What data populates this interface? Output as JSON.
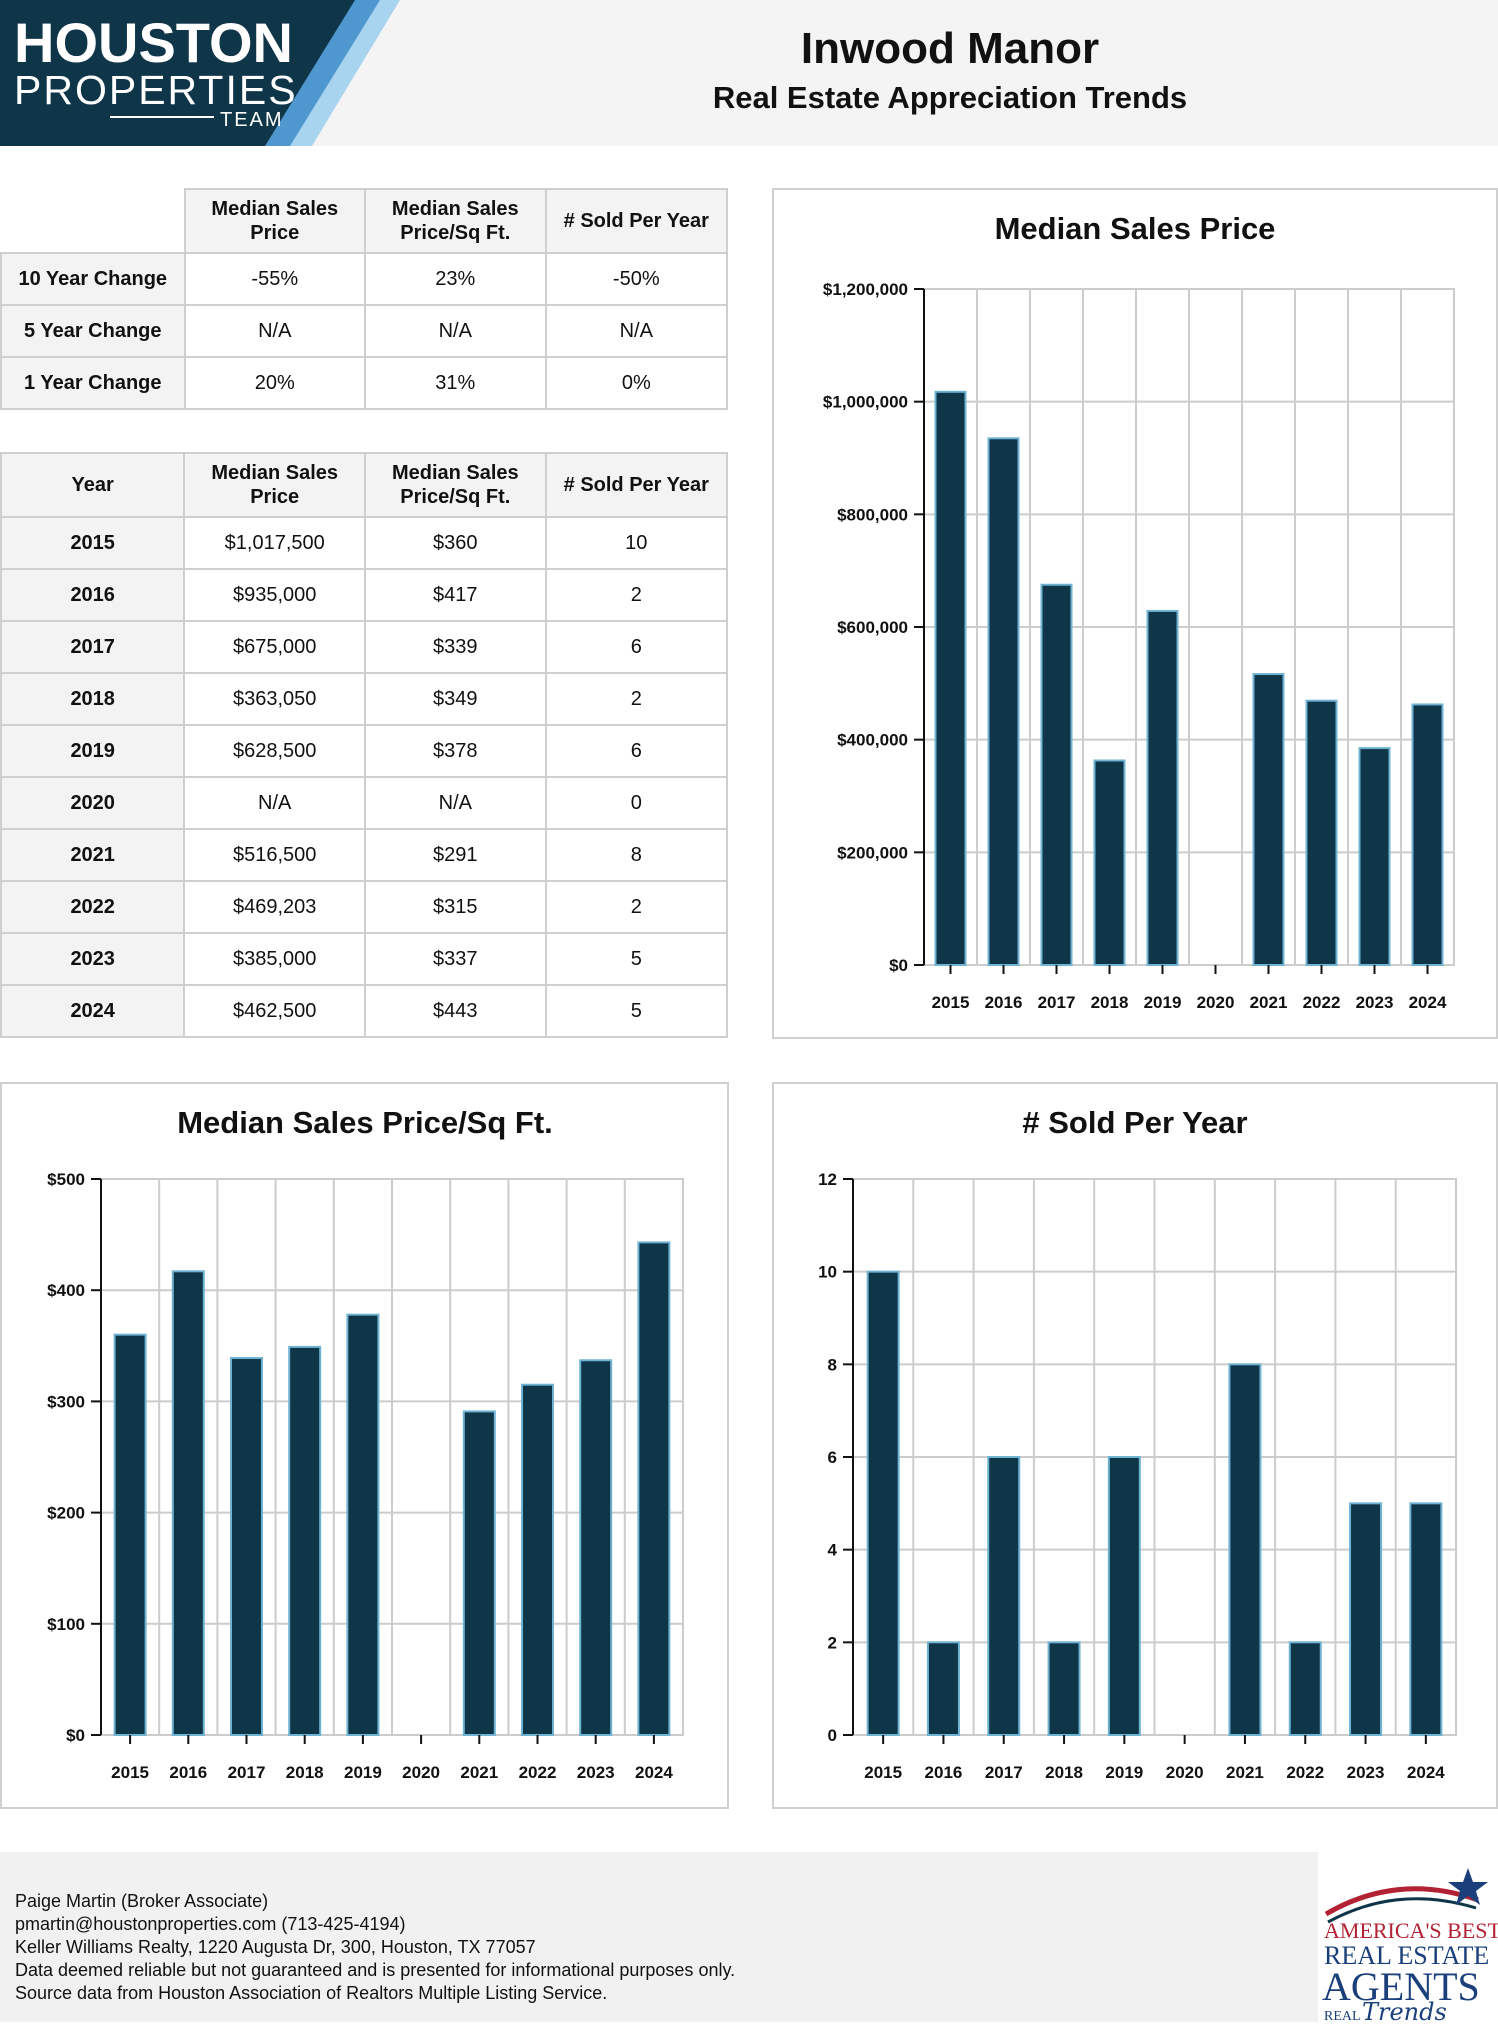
{
  "header": {
    "logo_line1": "HOUSTON",
    "logo_line2": "PROPERTIES",
    "logo_line3": "TEAM",
    "title": "Inwood Manor",
    "subtitle": "Real Estate Appreciation Trends"
  },
  "change_table": {
    "columns": [
      "Median Sales Price",
      "Median Sales Price/Sq Ft.",
      "# Sold Per Year"
    ],
    "rows": [
      {
        "label": "10 Year Change",
        "values": [
          "-55%",
          "23%",
          "-50%"
        ]
      },
      {
        "label": "5 Year Change",
        "values": [
          "N/A",
          "N/A",
          "N/A"
        ]
      },
      {
        "label": "1 Year Change",
        "values": [
          "20%",
          "31%",
          "0%"
        ]
      }
    ]
  },
  "year_table": {
    "columns": [
      "Year",
      "Median Sales Price",
      "Median Sales Price/Sq Ft.",
      "# Sold Per Year"
    ],
    "rows": [
      [
        "2015",
        "$1,017,500",
        "$360",
        "10"
      ],
      [
        "2016",
        "$935,000",
        "$417",
        "2"
      ],
      [
        "2017",
        "$675,000",
        "$339",
        "6"
      ],
      [
        "2018",
        "$363,050",
        "$349",
        "2"
      ],
      [
        "2019",
        "$628,500",
        "$378",
        "6"
      ],
      [
        "2020",
        "N/A",
        "N/A",
        "0"
      ],
      [
        "2021",
        "$516,500",
        "$291",
        "8"
      ],
      [
        "2022",
        "$469,203",
        "$315",
        "2"
      ],
      [
        "2023",
        "$385,000",
        "$337",
        "5"
      ],
      [
        "2024",
        "$462,500",
        "$443",
        "5"
      ]
    ]
  },
  "chart_data": [
    {
      "id": "price",
      "type": "bar",
      "title": "Median Sales Price",
      "categories": [
        "2015",
        "2016",
        "2017",
        "2018",
        "2019",
        "2020",
        "2021",
        "2022",
        "2023",
        "2024"
      ],
      "values": [
        1017500,
        935000,
        675000,
        363050,
        628500,
        null,
        516500,
        469203,
        385000,
        462500
      ],
      "ylim": [
        0,
        1200000
      ],
      "yticks": [
        0,
        200000,
        400000,
        600000,
        800000,
        1000000,
        1200000
      ],
      "ytick_labels": [
        "$0",
        "$200,000",
        "$400,000",
        "$600,000",
        "$800,000",
        "$1,000,000",
        "$1,200,000"
      ],
      "grid": true,
      "bar_color": "#0f3549",
      "bar_edge": "#6fb3d2"
    },
    {
      "id": "sqft",
      "type": "bar",
      "title": "Median Sales Price/Sq Ft.",
      "categories": [
        "2015",
        "2016",
        "2017",
        "2018",
        "2019",
        "2020",
        "2021",
        "2022",
        "2023",
        "2024"
      ],
      "values": [
        360,
        417,
        339,
        349,
        378,
        null,
        291,
        315,
        337,
        443
      ],
      "ylim": [
        0,
        500
      ],
      "yticks": [
        0,
        100,
        200,
        300,
        400,
        500
      ],
      "ytick_labels": [
        "$0",
        "$100",
        "$200",
        "$300",
        "$400",
        "$500"
      ],
      "grid": true,
      "bar_color": "#0f3549",
      "bar_edge": "#6fb3d2"
    },
    {
      "id": "sold",
      "type": "bar",
      "title": "# Sold Per Year",
      "categories": [
        "2015",
        "2016",
        "2017",
        "2018",
        "2019",
        "2020",
        "2021",
        "2022",
        "2023",
        "2024"
      ],
      "values": [
        10,
        2,
        6,
        2,
        6,
        0,
        8,
        2,
        5,
        5
      ],
      "ylim": [
        0,
        12
      ],
      "yticks": [
        0,
        2,
        4,
        6,
        8,
        10,
        12
      ],
      "ytick_labels": [
        "0",
        "2",
        "4",
        "6",
        "8",
        "10",
        "12"
      ],
      "grid": true,
      "bar_color": "#0f3549",
      "bar_edge": "#6fb3d2"
    }
  ],
  "footer": {
    "lines": [
      "Paige Martin (Broker Associate)",
      "pmartin@houstonproperties.com (713-425-4194)",
      "Keller Williams Realty, 1220 Augusta Dr, 300, Houston, TX 77057",
      "Data deemed reliable but not guaranteed and is presented for informational purposes only.",
      "Source data from Houston Association of Realtors Multiple Listing Service."
    ],
    "badge_line1": "AMERICA'S BEST",
    "badge_line2": "REAL ESTATE",
    "badge_line3": "AGENTS",
    "badge_line4": "REAL",
    "badge_line5": "Trends"
  },
  "colors": {
    "navy": "#0f3549",
    "light_blue": "#6fb3d2",
    "header_bg": "#f4f4f4"
  }
}
